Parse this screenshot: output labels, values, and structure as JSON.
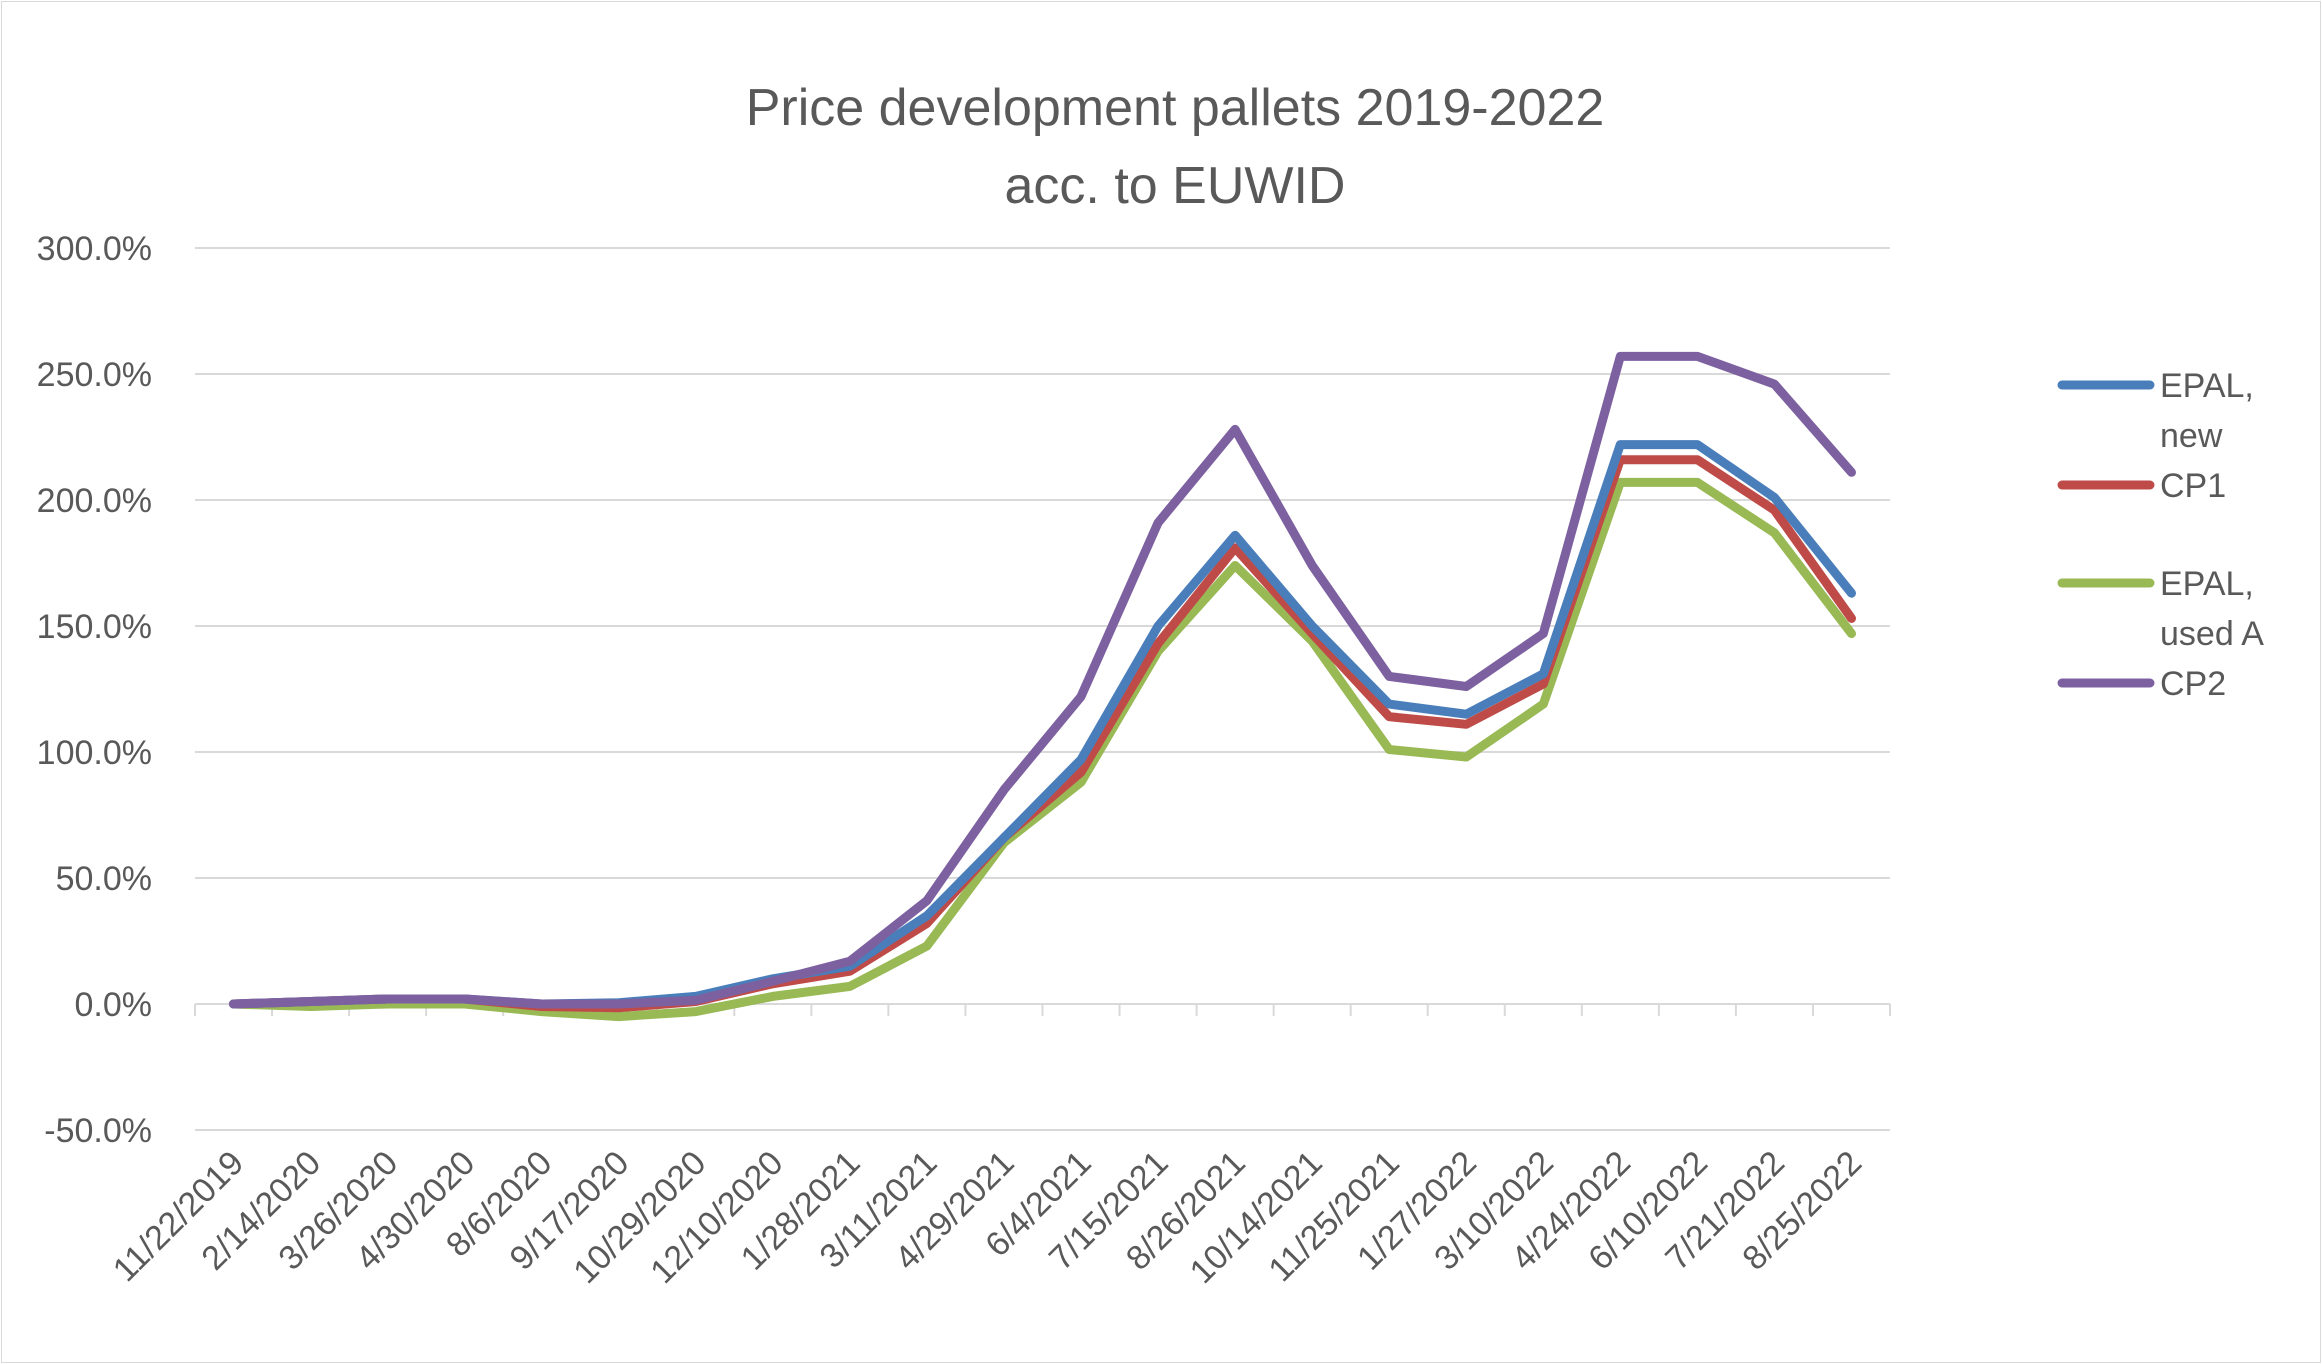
{
  "chart_data": {
    "type": "line",
    "title": [
      "Price development pallets 2019-2022",
      "acc. to EUWID"
    ],
    "xlabel": "",
    "ylabel": "",
    "ylim": [
      -50,
      300
    ],
    "yticks": [
      "-50.0%",
      "0.0%",
      "50.0%",
      "100.0%",
      "150.0%",
      "200.0%",
      "250.0%",
      "300.0%"
    ],
    "ytick_values": [
      -50,
      0,
      50,
      100,
      150,
      200,
      250,
      300
    ],
    "grid": true,
    "legend": "right",
    "categories": [
      "11/22/2019",
      "2/14/2020",
      "3/26/2020",
      "4/30/2020",
      "8/6/2020",
      "9/17/2020",
      "10/29/2020",
      "12/10/2020",
      "1/28/2021",
      "3/11/2021",
      "4/29/2021",
      "6/4/2021",
      "7/15/2021",
      "8/26/2021",
      "10/14/2021",
      "11/25/2021",
      "1/27/2022",
      "3/10/2022",
      "4/24/2022",
      "6/10/2022",
      "7/21/2022",
      "8/25/2022"
    ],
    "series": [
      {
        "name": "EPAL, new",
        "legend_lines": [
          "EPAL,",
          "new"
        ],
        "color": "#4a7ebb",
        "values": [
          0,
          1,
          2,
          2,
          0,
          0.5,
          3,
          10,
          15,
          35,
          66,
          97,
          150,
          186,
          150,
          119,
          115,
          131,
          222,
          222,
          201,
          163
        ]
      },
      {
        "name": "CP1",
        "legend_lines": [
          "CP1"
        ],
        "color": "#be4b48",
        "values": [
          0,
          1,
          2,
          2,
          -1,
          -1.5,
          1,
          8,
          13,
          32,
          66,
          92,
          143,
          181,
          147,
          114,
          111,
          127,
          216,
          216,
          196,
          153
        ]
      },
      {
        "name": "EPAL, used A",
        "legend_lines": [
          "EPAL,",
          "used A"
        ],
        "color": "#98b954",
        "values": [
          0,
          -1,
          0,
          0,
          -3,
          -5,
          -3,
          3,
          7,
          23,
          64,
          88,
          140,
          174,
          144,
          101,
          98,
          119,
          207,
          207,
          187,
          147
        ]
      },
      {
        "name": "CP2",
        "legend_lines": [
          "CP2"
        ],
        "color": "#7d60a0",
        "values": [
          0,
          1,
          2,
          2,
          0,
          0,
          1.5,
          9,
          17,
          41,
          85,
          122,
          191,
          228,
          174,
          130,
          126,
          147,
          257,
          257,
          246,
          211
        ]
      }
    ]
  }
}
